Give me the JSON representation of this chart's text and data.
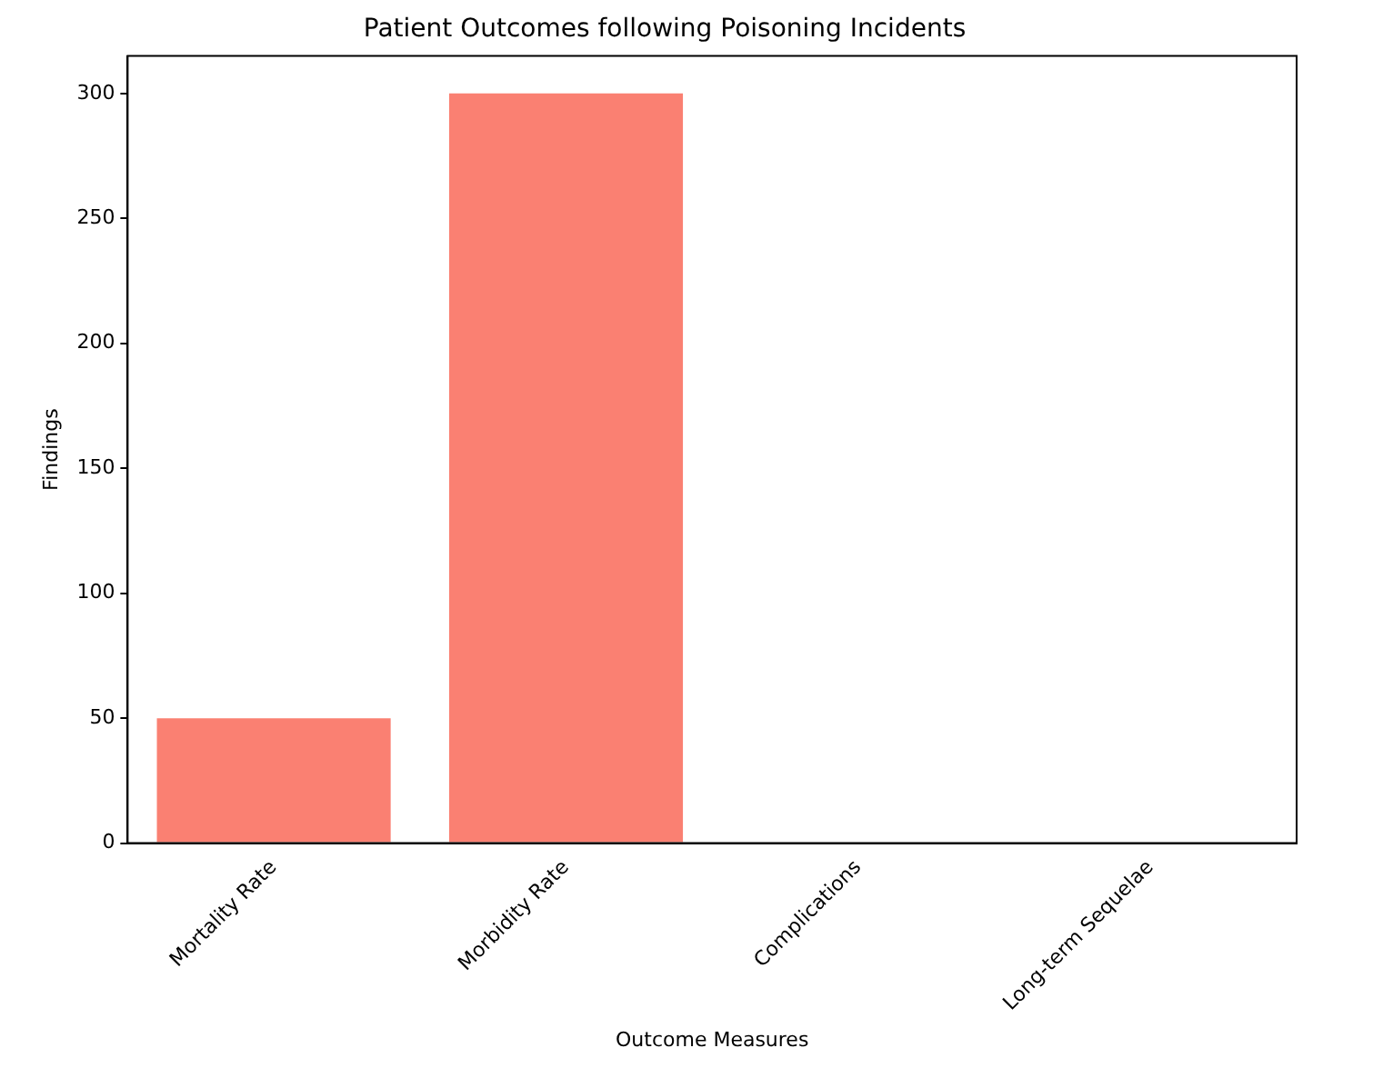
{
  "chart_data": {
    "type": "bar",
    "title": "Patient Outcomes following Poisoning Incidents",
    "xlabel": "Outcome Measures",
    "ylabel": "Findings",
    "categories": [
      "Mortality Rate",
      "Morbidity Rate",
      "Complications",
      "Long-term Sequelae"
    ],
    "values": [
      50,
      300,
      0,
      0
    ],
    "color": "#fa8072",
    "ylim": [
      0,
      315
    ],
    "yticks": [
      0,
      50,
      100,
      150,
      200,
      250,
      300
    ],
    "grid": false
  }
}
